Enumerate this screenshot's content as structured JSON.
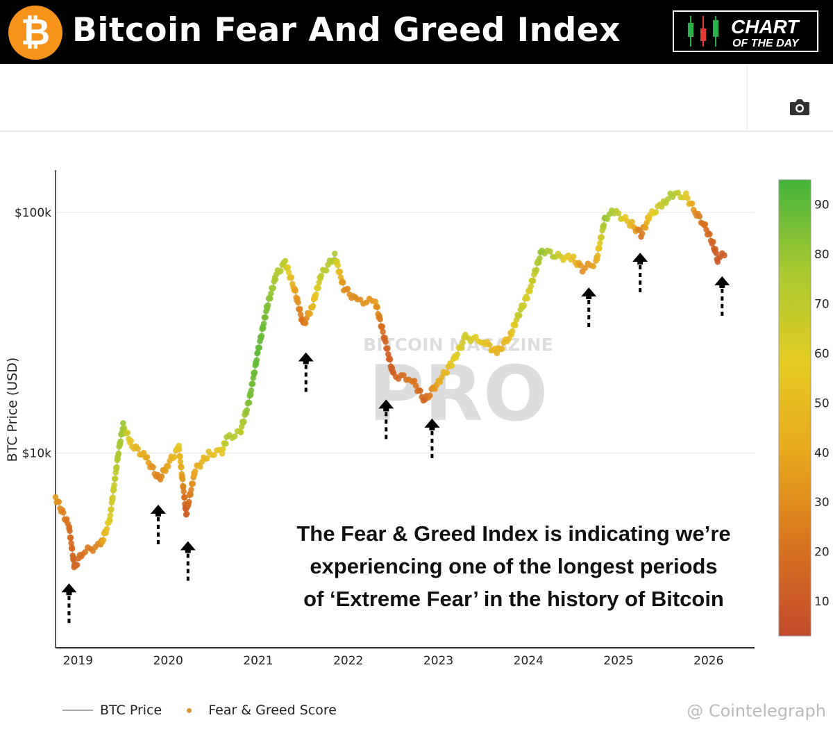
{
  "header": {
    "title": "Bitcoin Fear And Greed Index",
    "logo_symbol": "₿",
    "badge_line1": "CHART",
    "badge_line2": "OF THE DAY"
  },
  "toolbar": {
    "camera_icon": "camera-icon"
  },
  "annotation_text": [
    "The Fear & Greed Index is indicating we’re",
    "experiencing one of the longest periods",
    "of ‘Extreme Fear’ in the history of Bitcoin"
  ],
  "watermark": "BITCOIN MAGAZINE PRO",
  "credit": "@ Cointelegraph",
  "chart_data": {
    "type": "scatter",
    "ylabel": "BTC Price (USD)",
    "yscale": "log",
    "y_ticks": [
      {
        "value": 10000,
        "label": "$10k"
      },
      {
        "value": 100000,
        "label": "$100k"
      }
    ],
    "x_ticks": [
      "2019",
      "2020",
      "2021",
      "2022",
      "2023",
      "2024",
      "2025",
      "2026"
    ],
    "xlim": [
      2018.75,
      2026.51
    ],
    "ylim": [
      1550,
      150000
    ],
    "grid": true,
    "legend": {
      "placement": "bottom-left",
      "entries": [
        "BTC Price",
        "Fear & Greed Score"
      ]
    },
    "colorbar": {
      "ticks": [
        10,
        20,
        30,
        40,
        50,
        60,
        70,
        80,
        90
      ],
      "range": [
        3,
        95
      ],
      "colors": [
        "#c24a2c",
        "#d9731f",
        "#e8a81e",
        "#e4cb23",
        "#a9c932",
        "#44b33a"
      ]
    },
    "series": [
      {
        "name": "BTC Price",
        "color": "#aaaaaa",
        "x": [
          2018.75,
          2018.9,
          2018.96,
          2019.05,
          2019.25,
          2019.35,
          2019.45,
          2019.5,
          2019.6,
          2019.75,
          2019.9,
          2020.0,
          2020.12,
          2020.2,
          2020.3,
          2020.45,
          2020.6,
          2020.65,
          2020.8,
          2020.9,
          2021.0,
          2021.1,
          2021.2,
          2021.3,
          2021.4,
          2021.5,
          2021.6,
          2021.7,
          2021.85,
          2021.95,
          2022.1,
          2022.3,
          2022.4,
          2022.5,
          2022.7,
          2022.85,
          2023.0,
          2023.15,
          2023.3,
          2023.5,
          2023.65,
          2023.8,
          2023.9,
          2024.0,
          2024.15,
          2024.3,
          2024.5,
          2024.6,
          2024.75,
          2024.85,
          2024.95,
          2025.15,
          2025.25,
          2025.35,
          2025.5,
          2025.6,
          2025.75,
          2025.85,
          2025.95,
          2026.05,
          2026.1,
          2026.2
        ],
        "y": [
          6560,
          4940,
          3340,
          3880,
          4130,
          5240,
          10200,
          12970,
          10800,
          9600,
          7760,
          9030,
          10500,
          5580,
          8500,
          9900,
          10200,
          11500,
          12200,
          16500,
          26700,
          40700,
          55000,
          62000,
          48700,
          34000,
          40700,
          55000,
          66000,
          48700,
          42700,
          42700,
          30200,
          21000,
          20400,
          16500,
          19800,
          23600,
          30200,
          29300,
          26000,
          31000,
          38300,
          46000,
          70000,
          66000,
          64000,
          58300,
          62000,
          95000,
          101000,
          89000,
          81000,
          97000,
          110000,
          119000,
          117000,
          101000,
          89000,
          74000,
          64000,
          68000
        ]
      },
      {
        "name": "Fear & Greed Score",
        "score": [
          35,
          20,
          15,
          20,
          30,
          60,
          75,
          80,
          50,
          40,
          25,
          40,
          55,
          10,
          40,
          50,
          55,
          75,
          70,
          85,
          90,
          85,
          75,
          70,
          40,
          20,
          45,
          70,
          75,
          30,
          30,
          35,
          15,
          12,
          25,
          15,
          40,
          55,
          65,
          55,
          45,
          50,
          70,
          60,
          80,
          70,
          50,
          30,
          40,
          80,
          75,
          45,
          20,
          55,
          70,
          75,
          60,
          30,
          20,
          15,
          10,
          12
        ]
      }
    ],
    "arrows": [
      {
        "x": 2018.9,
        "y": 2870
      },
      {
        "x": 2019.89,
        "y": 6100
      },
      {
        "x": 2020.22,
        "y": 4300
      },
      {
        "x": 2021.53,
        "y": 26200
      },
      {
        "x": 2022.42,
        "y": 16700
      },
      {
        "x": 2022.93,
        "y": 13900
      },
      {
        "x": 2024.67,
        "y": 48800
      },
      {
        "x": 2025.24,
        "y": 68000
      },
      {
        "x": 2026.15,
        "y": 54300
      }
    ]
  }
}
